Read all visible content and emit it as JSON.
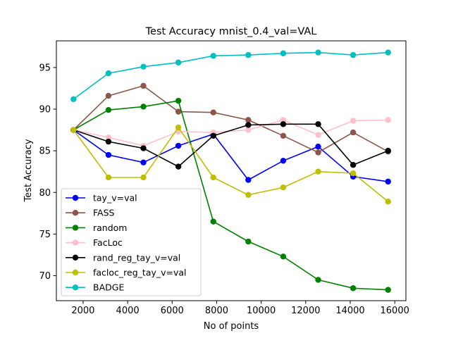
{
  "chart_data": {
    "type": "line",
    "title": "Test Accuracy mnist_0.4_val=VAL",
    "xlabel": "No of points",
    "ylabel": "Test Accuracy",
    "xlim": [
      800,
      16500
    ],
    "ylim": [
      67,
      98.2
    ],
    "xticks": [
      2000,
      4000,
      6000,
      8000,
      10000,
      12000,
      14000,
      16000
    ],
    "yticks": [
      70,
      75,
      80,
      85,
      90,
      95
    ],
    "grid": false,
    "legend_position": "lower-left",
    "x": [
      1570,
      3140,
      4710,
      6280,
      7850,
      9420,
      10990,
      12560,
      14130,
      15700
    ],
    "series": [
      {
        "name": "tay_v=val",
        "color": "#0000ff",
        "values": [
          87.5,
          84.5,
          83.6,
          85.6,
          87.0,
          81.5,
          83.8,
          85.5,
          81.9,
          81.3
        ]
      },
      {
        "name": "FASS",
        "color": "#8c564b",
        "values": [
          87.5,
          91.6,
          92.8,
          89.7,
          89.6,
          88.7,
          86.8,
          84.8,
          87.2,
          84.9
        ]
      },
      {
        "name": "random",
        "color": "#008000",
        "values": [
          87.5,
          89.9,
          90.3,
          91.0,
          76.5,
          74.1,
          72.3,
          69.5,
          68.5,
          68.3
        ]
      },
      {
        "name": "FacLoc",
        "color": "#ffc0cb",
        "values": [
          87.5,
          86.6,
          85.6,
          87.3,
          87.2,
          87.5,
          88.7,
          86.9,
          88.6,
          88.7
        ]
      },
      {
        "name": "rand_reg_tay_v=val",
        "color": "#000000",
        "values": [
          87.5,
          86.1,
          85.3,
          83.1,
          86.8,
          88.1,
          88.2,
          88.2,
          83.3,
          85.0
        ]
      },
      {
        "name": "facloc_reg_tay_v=val",
        "color": "#bfbf00",
        "values": [
          87.5,
          81.8,
          81.8,
          87.8,
          81.8,
          79.7,
          80.6,
          82.5,
          82.3,
          78.9
        ]
      },
      {
        "name": "BADGE",
        "color": "#00bfbf",
        "values": [
          91.2,
          94.3,
          95.1,
          95.6,
          96.4,
          96.5,
          96.7,
          96.8,
          96.5,
          96.8
        ]
      }
    ]
  }
}
